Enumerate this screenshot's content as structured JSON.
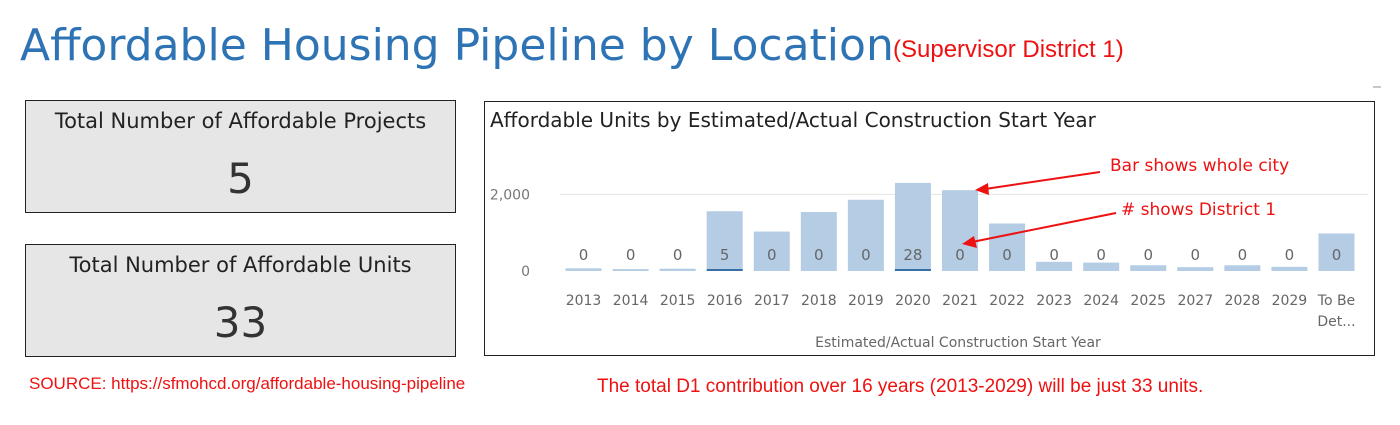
{
  "header": {
    "title": "Affordable Housing Pipeline by Location",
    "subtitle": "(Supervisor District 1)"
  },
  "cards": {
    "projects": {
      "label": "Total Number of Affordable Projects",
      "value": "5"
    },
    "units": {
      "label": "Total Number of Affordable Units",
      "value": "33"
    }
  },
  "annotations": {
    "bar_note": "Bar shows whole city",
    "number_note": "# shows District 1"
  },
  "footer": {
    "source": "SOURCE: https://sfmohcd.org/affordable-housing-pipeline",
    "summary": "The total D1 contribution over 16 years (2013-2029) will be just 33 units."
  },
  "colors": {
    "bar": "#b4cde4",
    "district_bar": "#3a6ea8",
    "annotation": "#ee1111",
    "title": "#2e74b5"
  },
  "chart_data": {
    "type": "bar",
    "title": "Affordable Units by Estimated/Actual Construction Start Year",
    "xlabel": "Estimated/Actual Construction Start Year",
    "ylabel": "",
    "categories": [
      "2013",
      "2014",
      "2015",
      "2016",
      "2017",
      "2018",
      "2019",
      "2020",
      "2021",
      "2022",
      "2023",
      "2024",
      "2025",
      "2027",
      "2028",
      "2029",
      "To Be Det..."
    ],
    "category_lines": [
      [
        "2013"
      ],
      [
        "2014"
      ],
      [
        "2015"
      ],
      [
        "2016"
      ],
      [
        "2017"
      ],
      [
        "2018"
      ],
      [
        "2019"
      ],
      [
        "2020"
      ],
      [
        "2021"
      ],
      [
        "2022"
      ],
      [
        "2023"
      ],
      [
        "2024"
      ],
      [
        "2025"
      ],
      [
        "2027"
      ],
      [
        "2028"
      ],
      [
        "2029"
      ],
      [
        "To Be",
        "Det..."
      ]
    ],
    "series": [
      {
        "values": [
          70,
          50,
          60,
          1560,
          1030,
          1540,
          1860,
          2300,
          2110,
          1240,
          240,
          220,
          150,
          100,
          150,
          110,
          980
        ]
      },
      {
        "values": [
          0,
          0,
          0,
          5,
          0,
          0,
          0,
          28,
          0,
          0,
          0,
          0,
          0,
          0,
          0,
          0,
          0
        ]
      }
    ],
    "data_labels": [
      "0",
      "0",
      "0",
      "5",
      "0",
      "0",
      "0",
      "28",
      "0",
      "0",
      "0",
      "0",
      "0",
      "0",
      "0",
      "0",
      "0"
    ],
    "yticks": [
      0,
      2000
    ],
    "ytick_labels": [
      "0",
      "2,000"
    ],
    "ylim": [
      0,
      2400
    ],
    "grid": true
  }
}
